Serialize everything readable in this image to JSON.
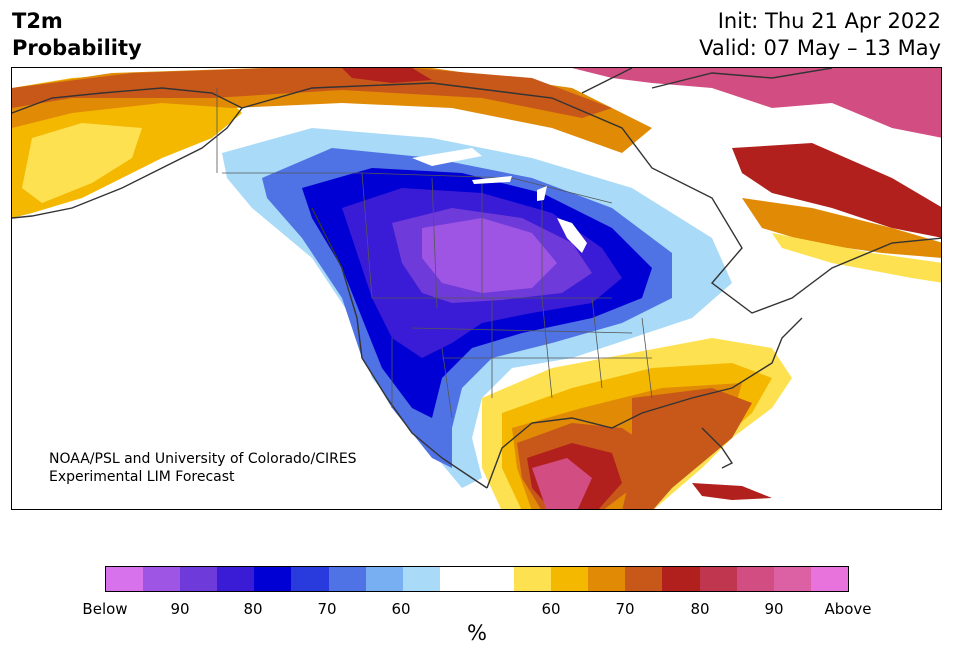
{
  "title": {
    "line1": "T2m",
    "line2": "Probability"
  },
  "init": {
    "line1": "Init: Thu 21 Apr 2022",
    "line2": "Valid: 07 May – 13 May"
  },
  "credit": {
    "line1": "NOAA/PSL and University of Colorado/CIRES",
    "line2": "Experimental LIM Forecast"
  },
  "colorbar": {
    "unit": "%",
    "colors": [
      "#d872ec",
      "#9e55e3",
      "#6e3ad9",
      "#3a1bd6",
      "#0000d4",
      "#2a3bde",
      "#4f72e4",
      "#78aef2",
      "#a9daf8",
      "#ffffff",
      "#ffffff",
      "#fee150",
      "#f4b800",
      "#e08a05",
      "#c8581a",
      "#b1201c",
      "#c0364f",
      "#d24e82",
      "#dc60a4",
      "#e873dd"
    ],
    "labels": [
      "Below",
      "90",
      "80",
      "70",
      "60",
      "60",
      "70",
      "80",
      "90",
      "Above"
    ]
  },
  "map_colors": {
    "below_90": "#9e55e3",
    "below_80": "#3a1bd6",
    "below_70": "#0000d4",
    "below_60": "#4f72e4",
    "below_50": "#a9daf8",
    "above_50": "#fee150",
    "above_60": "#f4b800",
    "above_70": "#e08a05",
    "above_80": "#b1201c",
    "above_90": "#d24e82"
  }
}
